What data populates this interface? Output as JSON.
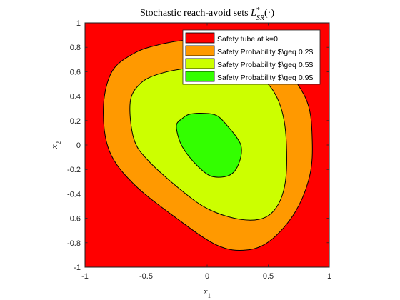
{
  "chart_data": {
    "type": "area",
    "title": "Stochastic reach-avoid sets L*_SR(·)",
    "title_parts": {
      "main": "Stochastic reach-avoid sets ",
      "L": "L",
      "sup": "*",
      "sub": "SR",
      "tail": "(·)"
    },
    "xlabel": {
      "base": "x",
      "sub": "1"
    },
    "ylabel": {
      "base": "x",
      "sub": "2"
    },
    "xlim": [
      -1,
      1
    ],
    "ylim": [
      -1,
      1
    ],
    "xticks": [
      -1,
      -0.5,
      0,
      0.5,
      1
    ],
    "xtick_labels": [
      "-1",
      "-0.5",
      "0",
      "0.5",
      "1"
    ],
    "yticks": [
      -1,
      -0.8,
      -0.6,
      -0.4,
      -0.2,
      0,
      0.2,
      0.4,
      0.6,
      0.8,
      1
    ],
    "ytick_labels": [
      "-1",
      "-0.8",
      "-0.6",
      "-0.4",
      "-0.2",
      "0",
      "0.2",
      "0.4",
      "0.6",
      "0.8",
      "1"
    ],
    "grid": false,
    "legend_position": "top-right",
    "series": [
      {
        "name": "Safety tube at k=0",
        "color": "#ff0000",
        "region": [
          [
            -1,
            -1
          ],
          [
            1,
            -1
          ],
          [
            1,
            1
          ],
          [
            -1,
            1
          ]
        ]
      },
      {
        "name": "Safety Probability $\\geq 0.2$",
        "color": "#ff9900",
        "region": [
          [
            0.45,
            0.82
          ],
          [
            0.65,
            0.62
          ],
          [
            0.82,
            0.35
          ],
          [
            0.86,
            0.05
          ],
          [
            0.84,
            -0.25
          ],
          [
            0.72,
            -0.55
          ],
          [
            0.52,
            -0.78
          ],
          [
            0.32,
            -0.86
          ],
          [
            0.08,
            -0.82
          ],
          [
            -0.25,
            -0.6
          ],
          [
            -0.6,
            -0.32
          ],
          [
            -0.8,
            -0.05
          ],
          [
            -0.85,
            0.3
          ],
          [
            -0.78,
            0.6
          ],
          [
            -0.6,
            0.75
          ],
          [
            -0.4,
            0.82
          ],
          [
            -0.15,
            0.86
          ],
          [
            0.15,
            0.86
          ]
        ]
      },
      {
        "name": "Safety Probability $\\geq 0.5$",
        "color": "#ccff00",
        "region": [
          [
            0.1,
            0.64
          ],
          [
            0.33,
            0.62
          ],
          [
            0.53,
            0.46
          ],
          [
            0.63,
            0.2
          ],
          [
            0.65,
            -0.2
          ],
          [
            0.6,
            -0.45
          ],
          [
            0.48,
            -0.59
          ],
          [
            0.28,
            -0.61
          ],
          [
            0.02,
            -0.53
          ],
          [
            -0.2,
            -0.38
          ],
          [
            -0.48,
            -0.13
          ],
          [
            -0.6,
            0.05
          ],
          [
            -0.63,
            0.35
          ],
          [
            -0.55,
            0.5
          ],
          [
            -0.4,
            0.58
          ],
          [
            -0.15,
            0.63
          ]
        ]
      },
      {
        "name": "Safety Probability $\\geq 0.9$",
        "color": "#33ff00",
        "region": [
          [
            -0.2,
            0.22
          ],
          [
            -0.15,
            0.25
          ],
          [
            -0.05,
            0.26
          ],
          [
            0.08,
            0.24
          ],
          [
            0.18,
            0.14
          ],
          [
            0.25,
            0.05
          ],
          [
            0.28,
            -0.02
          ],
          [
            0.27,
            -0.12
          ],
          [
            0.22,
            -0.22
          ],
          [
            0.14,
            -0.26
          ],
          [
            0.02,
            -0.25
          ],
          [
            -0.1,
            -0.15
          ],
          [
            -0.2,
            -0.02
          ],
          [
            -0.24,
            0.08
          ],
          [
            -0.25,
            0.17
          ]
        ]
      }
    ]
  }
}
